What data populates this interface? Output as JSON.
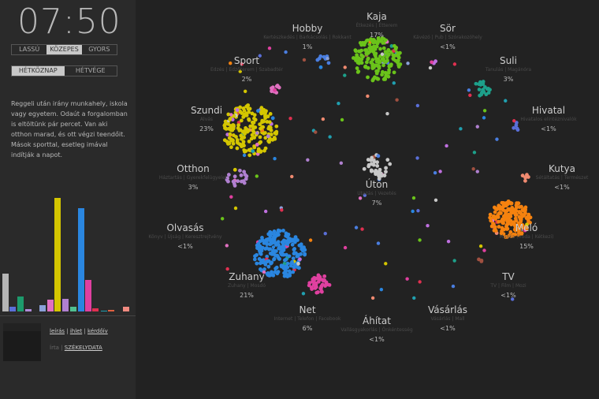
{
  "clock": "07:50",
  "speed": {
    "options": [
      "LASSÚ",
      "KÖZEPES",
      "GYORS"
    ],
    "selected": "KÖZEPES"
  },
  "day": {
    "options": [
      "HÉTKÖZNAP",
      "HÉTVÉGE"
    ],
    "selected": "HÉTKÖZNAP"
  },
  "description": "Reggeli után irány munkahely, iskola vagy egyetem. Odaút a forgalomban is eltöltünk pár percet. Van aki otthon marad, és ott végzi teendőit. Mások sporttal, esetleg imával indítják a napot.",
  "bars": [
    {
      "color": "#b5b5b5",
      "value": 48
    },
    {
      "color": "#5a6fd8",
      "value": 6
    },
    {
      "color": "#1d9a6c",
      "value": 19
    },
    {
      "color": "#b08ad8",
      "value": 3
    },
    {
      "color": "#8aa0d8",
      "value": 8
    },
    {
      "color": "#e070c0",
      "value": 15
    },
    {
      "color": "#d4c600",
      "value": 144
    },
    {
      "color": "#b080d0",
      "value": 16
    },
    {
      "color": "#50c090",
      "value": 6
    },
    {
      "color": "#2a86e0",
      "value": 131
    },
    {
      "color": "#e040a0",
      "value": 40
    },
    {
      "color": "#e03050",
      "value": 4
    },
    {
      "color": "#20a0b0",
      "value": 1
    },
    {
      "color": "#e06040",
      "value": 2
    },
    {
      "color": "#f08a80",
      "value": 6
    }
  ],
  "links": {
    "items": [
      "leírás",
      "ihlet",
      "kérdőív"
    ],
    "credit_prefix": "Írta",
    "credit_link": "SZÉKELYDATA"
  },
  "activities": [
    {
      "name": "Kaja",
      "sub": "Étkezés | Étterem",
      "pct": "17%",
      "color": "#6ac31a"
    },
    {
      "name": "Hobby",
      "sub": "Kertészkedés | Barkácsolás | Rokkant",
      "pct": "1%",
      "color": "#4a7ee0"
    },
    {
      "name": "Sör",
      "sub": "Kávézó | Pub | Szórakozóhely",
      "pct": "<1%",
      "color": "#c070e0"
    },
    {
      "name": "Sport",
      "sub": "Edzés | Edzőterem | Szabadtér",
      "pct": "2%",
      "color": "#e070c0"
    },
    {
      "name": "Suli",
      "sub": "Tanulás | Magánóra",
      "pct": "3%",
      "color": "#1da08a"
    },
    {
      "name": "Szundi",
      "sub": "Alvás",
      "pct": "23%",
      "color": "#d4c600"
    },
    {
      "name": "Hivatal",
      "sub": "Hivatalos elintéznivalók",
      "pct": "<1%",
      "color": "#5a6fd8"
    },
    {
      "name": "Otthon",
      "sub": "Háztartás | Gyerekfelügyelet",
      "pct": "3%",
      "color": "#b080d0"
    },
    {
      "name": "Kutya",
      "sub": "Sétáltatás | Természet",
      "pct": "<1%",
      "color": "#f08a70"
    },
    {
      "name": "Úton",
      "sub": "Utazás | Vezetés",
      "pct": "7%",
      "color": "#c8c8c8"
    },
    {
      "name": "Olvasás",
      "sub": "Könyv | Újság | Keresztrejtvény",
      "pct": "<1%",
      "color": "#8aa0d8"
    },
    {
      "name": "Meló",
      "sub": "Munka (Iroda | Kétkezi)",
      "pct": "15%",
      "color": "#f5820f"
    },
    {
      "name": "Zuhany",
      "sub": "Zuhany | Mosdó",
      "pct": "21%",
      "color": "#2a86e0"
    },
    {
      "name": "TV",
      "sub": "TV | Film | Mozi",
      "pct": "<1%",
      "color": "#a05040"
    },
    {
      "name": "Net",
      "sub": "Internet | Telefon | Facebook",
      "pct": "6%",
      "color": "#e040a0"
    },
    {
      "name": "Vásárlás",
      "sub": "Vásárlás | Mall",
      "pct": "<1%",
      "color": "#e03050"
    },
    {
      "name": "Áhítat",
      "sub": "Vallásgyakorlás | Önkéntesség",
      "pct": "<1%",
      "color": "#20a0b0"
    }
  ]
}
